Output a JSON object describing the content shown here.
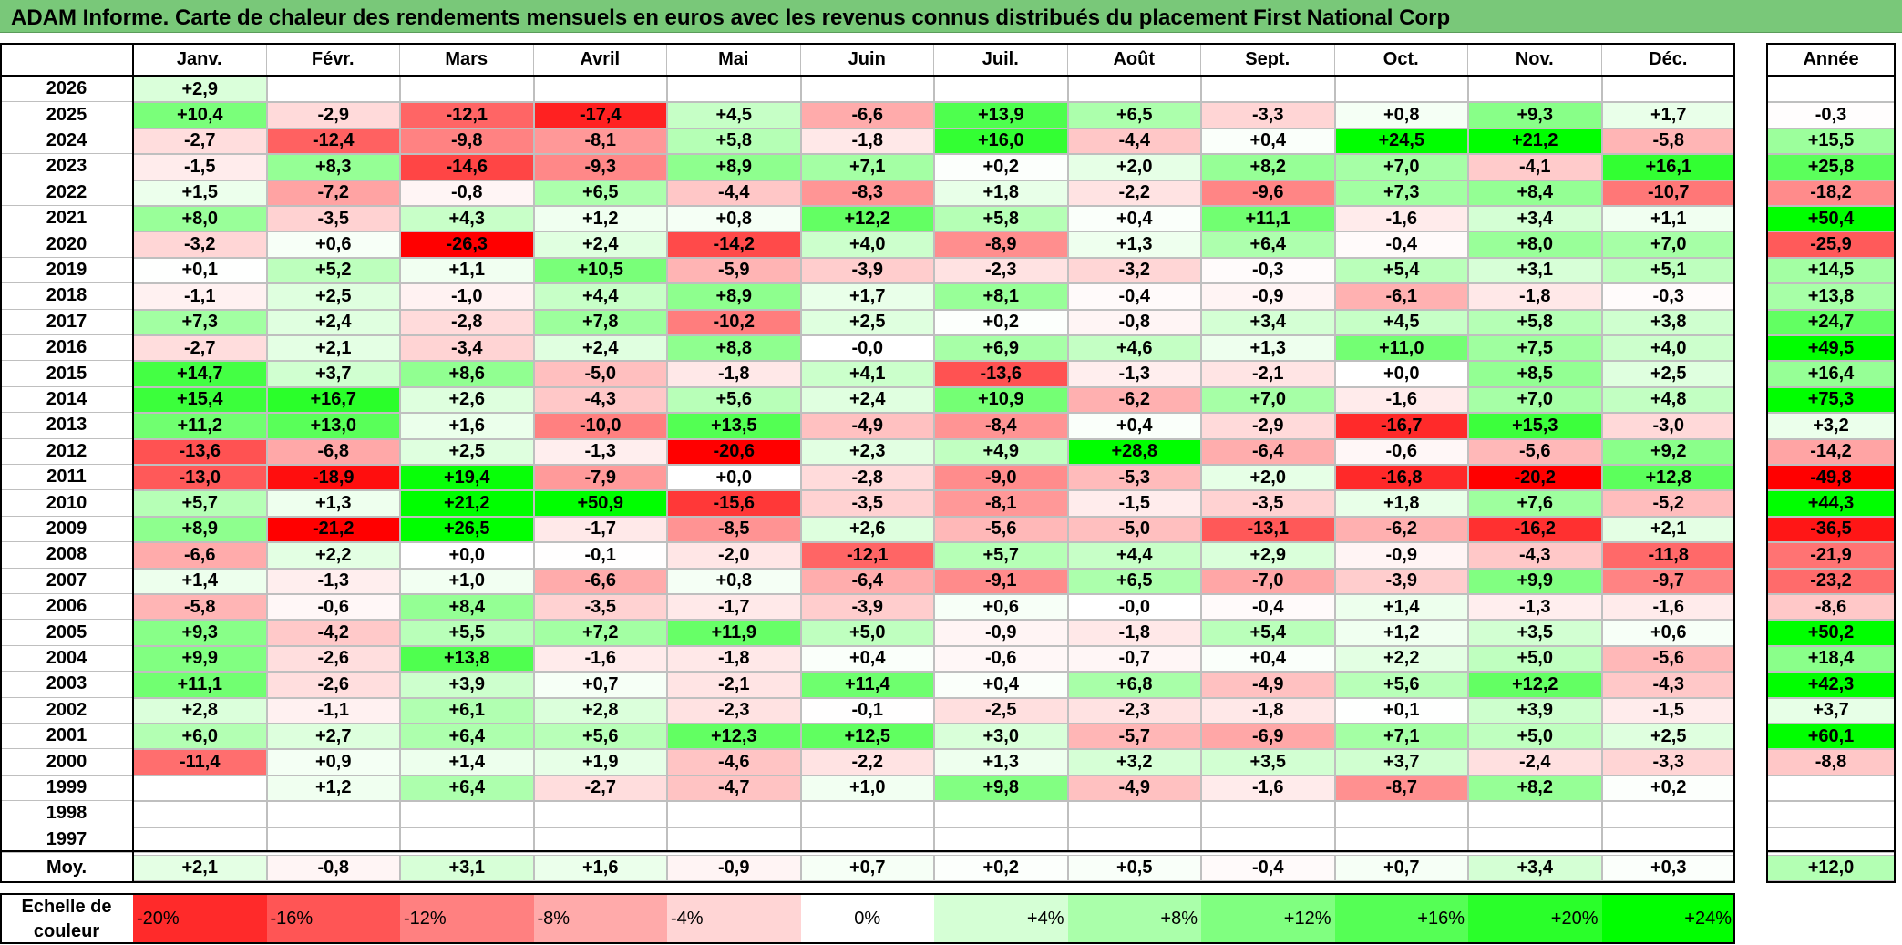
{
  "title": "ADAM Informe. Carte de chaleur des rendements mensuels en euros avec les revenus connus distribués du placement First National Corp",
  "colors": {
    "title_bg": "#79C879",
    "negative_full": "#FF0000",
    "positive_full": "#00FF00",
    "neutral": "#FFFFFF",
    "grid": "#BFBFBF"
  },
  "chart_data": {
    "type": "heatmap",
    "title": "ADAM Informe. Carte de chaleur des rendements mensuels en euros avec les revenus connus distribués du placement First National Corp",
    "months": [
      "Janv.",
      "Févr.",
      "Mars",
      "Avril",
      "Mai",
      "Juin",
      "Juil.",
      "Août",
      "Sept.",
      "Oct.",
      "Nov.",
      "Déc."
    ],
    "year_header": "Année",
    "rows": [
      {
        "year": "2026",
        "months": [
          "+2,9",
          "",
          "",
          "",
          "",
          "",
          "",
          "",
          "",
          "",
          "",
          ""
        ],
        "annual": ""
      },
      {
        "year": "2025",
        "months": [
          "+10,4",
          "-2,9",
          "-12,1",
          "-17,4",
          "+4,5",
          "-6,6",
          "+13,9",
          "+6,5",
          "-3,3",
          "+0,8",
          "+9,3",
          "+1,7"
        ],
        "annual": "-0,3"
      },
      {
        "year": "2024",
        "months": [
          "-2,7",
          "-12,4",
          "-9,8",
          "-8,1",
          "+5,8",
          "-1,8",
          "+16,0",
          "-4,4",
          "+0,4",
          "+24,5",
          "+21,2",
          "-5,8"
        ],
        "annual": "+15,5"
      },
      {
        "year": "2023",
        "months": [
          "-1,5",
          "+8,3",
          "-14,6",
          "-9,3",
          "+8,9",
          "+7,1",
          "+0,2",
          "+2,0",
          "+8,2",
          "+7,0",
          "-4,1",
          "+16,1"
        ],
        "annual": "+25,8"
      },
      {
        "year": "2022",
        "months": [
          "+1,5",
          "-7,2",
          "-0,8",
          "+6,5",
          "-4,4",
          "-8,3",
          "+1,8",
          "-2,2",
          "-9,6",
          "+7,3",
          "+8,4",
          "-10,7"
        ],
        "annual": "-18,2"
      },
      {
        "year": "2021",
        "months": [
          "+8,0",
          "-3,5",
          "+4,3",
          "+1,2",
          "+0,8",
          "+12,2",
          "+5,8",
          "+0,4",
          "+11,1",
          "-1,6",
          "+3,4",
          "+1,1"
        ],
        "annual": "+50,4"
      },
      {
        "year": "2020",
        "months": [
          "-3,2",
          "+0,6",
          "-26,3",
          "+2,4",
          "-14,2",
          "+4,0",
          "-8,9",
          "+1,3",
          "+6,4",
          "-0,4",
          "+8,0",
          "+7,0"
        ],
        "annual": "-25,9"
      },
      {
        "year": "2019",
        "months": [
          "+0,1",
          "+5,2",
          "+1,1",
          "+10,5",
          "-5,9",
          "-3,9",
          "-2,3",
          "-3,2",
          "-0,3",
          "+5,4",
          "+3,1",
          "+5,1"
        ],
        "annual": "+14,5"
      },
      {
        "year": "2018",
        "months": [
          "-1,1",
          "+2,5",
          "-1,0",
          "+4,4",
          "+8,9",
          "+1,7",
          "+8,1",
          "-0,4",
          "-0,9",
          "-6,1",
          "-1,8",
          "-0,3"
        ],
        "annual": "+13,8"
      },
      {
        "year": "2017",
        "months": [
          "+7,3",
          "+2,4",
          "-2,8",
          "+7,8",
          "-10,2",
          "+2,5",
          "+0,2",
          "-0,8",
          "+3,4",
          "+4,5",
          "+5,8",
          "+3,8"
        ],
        "annual": "+24,7"
      },
      {
        "year": "2016",
        "months": [
          "-2,7",
          "+2,1",
          "-3,4",
          "+2,4",
          "+8,8",
          "-0,0",
          "+6,9",
          "+4,6",
          "+1,3",
          "+11,0",
          "+7,5",
          "+4,0"
        ],
        "annual": "+49,5"
      },
      {
        "year": "2015",
        "months": [
          "+14,7",
          "+3,7",
          "+8,6",
          "-5,0",
          "-1,8",
          "+4,1",
          "-13,6",
          "-1,3",
          "-2,1",
          "+0,0",
          "+8,5",
          "+2,5"
        ],
        "annual": "+16,4"
      },
      {
        "year": "2014",
        "months": [
          "+15,4",
          "+16,7",
          "+2,6",
          "-4,3",
          "+5,6",
          "+2,4",
          "+10,9",
          "-6,2",
          "+7,0",
          "-1,6",
          "+7,0",
          "+4,8"
        ],
        "annual": "+75,3"
      },
      {
        "year": "2013",
        "months": [
          "+11,2",
          "+13,0",
          "+1,6",
          "-10,0",
          "+13,5",
          "-4,9",
          "-8,4",
          "+0,4",
          "-2,9",
          "-16,7",
          "+15,3",
          "-3,0"
        ],
        "annual": "+3,2"
      },
      {
        "year": "2012",
        "months": [
          "-13,6",
          "-6,8",
          "+2,5",
          "-1,3",
          "-20,6",
          "+2,3",
          "+4,9",
          "+28,8",
          "-6,4",
          "-0,6",
          "-5,6",
          "+9,2"
        ],
        "annual": "-14,2"
      },
      {
        "year": "2011",
        "months": [
          "-13,0",
          "-18,9",
          "+19,4",
          "-7,9",
          "+0,0",
          "-2,8",
          "-9,0",
          "-5,3",
          "+2,0",
          "-16,8",
          "-20,2",
          "+12,8"
        ],
        "annual": "-49,8"
      },
      {
        "year": "2010",
        "months": [
          "+5,7",
          "+1,3",
          "+21,2",
          "+50,9",
          "-15,6",
          "-3,5",
          "-8,1",
          "-1,5",
          "-3,5",
          "+1,8",
          "+7,6",
          "-5,2"
        ],
        "annual": "+44,3"
      },
      {
        "year": "2009",
        "months": [
          "+8,9",
          "-21,2",
          "+26,5",
          "-1,7",
          "-8,5",
          "+2,6",
          "-5,6",
          "-5,0",
          "-13,1",
          "-6,2",
          "-16,2",
          "+2,1"
        ],
        "annual": "-36,5"
      },
      {
        "year": "2008",
        "months": [
          "-6,6",
          "+2,2",
          "+0,0",
          "-0,1",
          "-2,0",
          "-12,1",
          "+5,7",
          "+4,4",
          "+2,9",
          "-0,9",
          "-4,3",
          "-11,8"
        ],
        "annual": "-21,9"
      },
      {
        "year": "2007",
        "months": [
          "+1,4",
          "-1,3",
          "+1,0",
          "-6,6",
          "+0,8",
          "-6,4",
          "-9,1",
          "+6,5",
          "-7,0",
          "-3,9",
          "+9,9",
          "-9,7"
        ],
        "annual": "-23,2"
      },
      {
        "year": "2006",
        "months": [
          "-5,8",
          "-0,6",
          "+8,4",
          "-3,5",
          "-1,7",
          "-3,9",
          "+0,6",
          "-0,0",
          "-0,4",
          "+1,4",
          "-1,3",
          "-1,6"
        ],
        "annual": "-8,6"
      },
      {
        "year": "2005",
        "months": [
          "+9,3",
          "-4,2",
          "+5,5",
          "+7,2",
          "+11,9",
          "+5,0",
          "-0,9",
          "-1,8",
          "+5,4",
          "+1,2",
          "+3,5",
          "+0,6"
        ],
        "annual": "+50,2"
      },
      {
        "year": "2004",
        "months": [
          "+9,9",
          "-2,6",
          "+13,8",
          "-1,6",
          "-1,8",
          "+0,4",
          "-0,6",
          "-0,7",
          "+0,4",
          "+2,2",
          "+5,0",
          "-5,6"
        ],
        "annual": "+18,4"
      },
      {
        "year": "2003",
        "months": [
          "+11,1",
          "-2,6",
          "+3,9",
          "+0,7",
          "-2,1",
          "+11,4",
          "+0,4",
          "+6,8",
          "-4,9",
          "+5,6",
          "+12,2",
          "-4,3"
        ],
        "annual": "+42,3"
      },
      {
        "year": "2002",
        "months": [
          "+2,8",
          "-1,1",
          "+6,1",
          "+2,8",
          "-2,3",
          "-0,1",
          "-2,5",
          "-2,3",
          "-1,8",
          "+0,1",
          "+3,9",
          "-1,5"
        ],
        "annual": "+3,7"
      },
      {
        "year": "2001",
        "months": [
          "+6,0",
          "+2,7",
          "+6,4",
          "+5,6",
          "+12,3",
          "+12,5",
          "+3,0",
          "-5,7",
          "-6,9",
          "+7,1",
          "+5,0",
          "+2,5"
        ],
        "annual": "+60,1"
      },
      {
        "year": "2000",
        "months": [
          "-11,4",
          "+0,9",
          "+1,4",
          "+1,9",
          "-4,6",
          "-2,2",
          "+1,3",
          "+3,2",
          "+3,5",
          "+3,7",
          "-2,4",
          "-3,3"
        ],
        "annual": "-8,8"
      },
      {
        "year": "1999",
        "months": [
          "",
          "+1,2",
          "+6,4",
          "-2,7",
          "-4,7",
          "+1,0",
          "+9,8",
          "-4,9",
          "-1,6",
          "-8,7",
          "+8,2",
          "+0,2"
        ],
        "annual": ""
      },
      {
        "year": "1998",
        "months": [
          "",
          "",
          "",
          "",
          "",
          "",
          "",
          "",
          "",
          "",
          "",
          ""
        ],
        "annual": ""
      },
      {
        "year": "1997",
        "months": [
          "",
          "",
          "",
          "",
          "",
          "",
          "",
          "",
          "",
          "",
          "",
          ""
        ],
        "annual": ""
      }
    ],
    "average": {
      "label": "Moy.",
      "months": [
        "+2,1",
        "-0,8",
        "+3,1",
        "+1,6",
        "-0,9",
        "+0,7",
        "+0,2",
        "+0,5",
        "-0,4",
        "+0,7",
        "+3,4",
        "+0,3"
      ],
      "annual": "+12,0"
    },
    "color_scale": {
      "label": "Echelle de couleur",
      "steps": [
        "-20%",
        "-16%",
        "-12%",
        "-8%",
        "-4%",
        "0%",
        "+4%",
        "+8%",
        "+12%",
        "+16%",
        "+20%",
        "+24%"
      ],
      "values": [
        -20,
        -16,
        -12,
        -8,
        -4,
        0,
        4,
        8,
        12,
        16,
        20,
        24
      ]
    }
  }
}
